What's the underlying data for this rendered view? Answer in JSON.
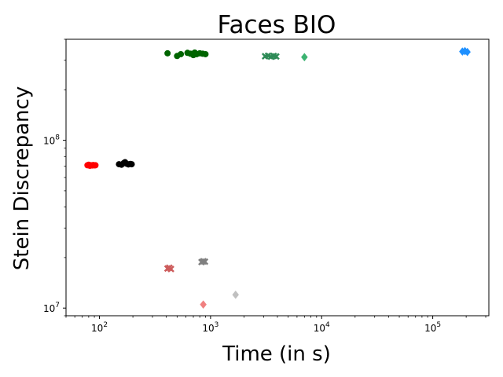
{
  "chart_data": {
    "type": "scatter",
    "title": "Faces BIO",
    "xlabel": "Time (in s)",
    "ylabel": "Stein Discrepancy",
    "xscale": "log",
    "yscale": "log",
    "xlim": [
      50,
      320000
    ],
    "ylim": [
      9000000,
      400000000
    ],
    "x_ticks": [
      {
        "value": 100,
        "base": "10",
        "exp": "2"
      },
      {
        "value": 1000,
        "base": "10",
        "exp": "3"
      },
      {
        "value": 10000,
        "base": "10",
        "exp": "4"
      },
      {
        "value": 100000,
        "base": "10",
        "exp": "5"
      }
    ],
    "y_ticks": [
      {
        "value": 10000000,
        "base": "10",
        "exp": "7"
      },
      {
        "value": 100000000,
        "base": "10",
        "exp": "8"
      }
    ],
    "grid": false,
    "legend": "none",
    "series": [
      {
        "color": "#ff0000",
        "marker": "circle",
        "points": [
          [
            78,
            71000000
          ],
          [
            80,
            71500000
          ],
          [
            82,
            70500000
          ],
          [
            84,
            71000000
          ],
          [
            86,
            70800000
          ],
          [
            88,
            71200000
          ],
          [
            90,
            70900000
          ],
          [
            92,
            71000000
          ]
        ]
      },
      {
        "color": "#000000",
        "marker": "circle",
        "points": [
          [
            150,
            72000000
          ],
          [
            158,
            71500000
          ],
          [
            165,
            73000000
          ],
          [
            170,
            74000000
          ],
          [
            176,
            72500000
          ],
          [
            182,
            71800000
          ],
          [
            190,
            72300000
          ],
          [
            195,
            72000000
          ]
        ]
      },
      {
        "color": "#006400",
        "marker": "circle",
        "points": [
          [
            410,
            330000000
          ],
          [
            500,
            318000000
          ],
          [
            540,
            326000000
          ],
          [
            620,
            332000000
          ],
          [
            660,
            328000000
          ],
          [
            700,
            322000000
          ],
          [
            720,
            333000000
          ],
          [
            750,
            326000000
          ],
          [
            800,
            330000000
          ],
          [
            850,
            328000000
          ],
          [
            900,
            326000000
          ]
        ]
      },
      {
        "color": "#2e8b57",
        "marker": "x",
        "points": [
          [
            3100,
            317000000
          ],
          [
            3300,
            319000000
          ],
          [
            3500,
            315000000
          ],
          [
            3700,
            318000000
          ],
          [
            3900,
            316000000
          ]
        ]
      },
      {
        "color": "#3cb371",
        "marker": "diamond",
        "points": [
          [
            7000,
            313000000
          ]
        ]
      },
      {
        "color": "#1e90ff",
        "marker": "diamond",
        "points": [
          [
            185000,
            338000000
          ],
          [
            195000,
            340000000
          ],
          [
            205000,
            336000000
          ]
        ]
      },
      {
        "color": "#cd5c5c",
        "marker": "x",
        "points": [
          [
            410,
            17200000
          ],
          [
            425,
            17400000
          ],
          [
            440,
            17100000
          ]
        ]
      },
      {
        "color": "#808080",
        "marker": "x",
        "points": [
          [
            830,
            18800000
          ],
          [
            860,
            19000000
          ],
          [
            890,
            18900000
          ]
        ]
      },
      {
        "color": "#f08080",
        "marker": "diamond",
        "points": [
          [
            860,
            10500000
          ]
        ]
      },
      {
        "color": "#c0c0c0",
        "marker": "diamond",
        "points": [
          [
            1680,
            12000000
          ]
        ]
      }
    ]
  }
}
